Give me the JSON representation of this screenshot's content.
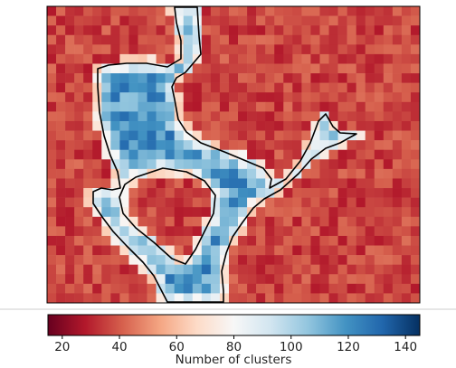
{
  "chart_data": {
    "type": "heatmap",
    "title": "",
    "colorbar": {
      "label": "Number of clusters",
      "range": [
        15,
        145
      ],
      "ticks": [
        20,
        40,
        60,
        80,
        100,
        120,
        140
      ],
      "tick_labels": [
        "20",
        "40",
        "60",
        "80",
        "100",
        "120",
        "140"
      ],
      "colormap": "RdBu",
      "orientation": "horizontal"
    },
    "grid": {
      "cols": 41,
      "rows": 31,
      "background_value": 36,
      "high_region_value": 115,
      "edge_value": 78
    },
    "contour": {
      "color": "#000000",
      "description": "boundary of the high-cluster region"
    },
    "colors": {
      "low": "#67001f",
      "mid": "#f7f7f7",
      "high": "#053061",
      "frame": "#000000",
      "divider": "#cccccc"
    }
  }
}
